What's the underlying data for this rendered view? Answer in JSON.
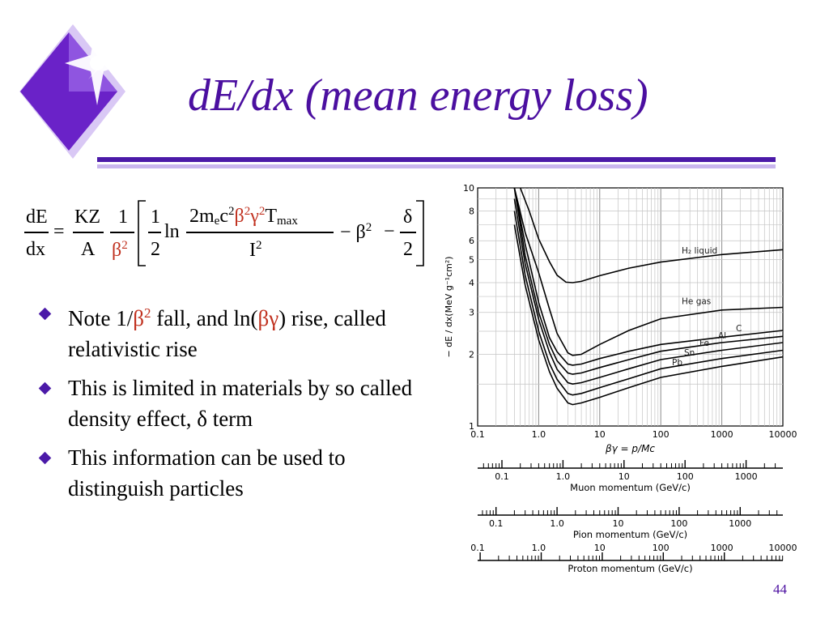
{
  "slide": {
    "title": "dE/dx (mean energy loss)",
    "page_number": "44",
    "accent_color": "#4b1aa8",
    "title_color": "#4b0fa0",
    "highlight_color": "#c0301e",
    "logo_icon": "purple-diamond-sparkle-icon"
  },
  "formula": {
    "lhs_num": "dE",
    "lhs_den": "dx",
    "eq": "=",
    "kz_num": "KZ",
    "kz_den": "A",
    "one_num": "1",
    "beta_den": "β",
    "beta_den_exp": "2",
    "half_num": "1",
    "half_den": "2",
    "ln": "ln",
    "arg_a": "2m",
    "arg_e": "e",
    "arg_c": "c",
    "arg_c_exp": "2",
    "arg_beta": "β",
    "arg_beta_exp": "2",
    "arg_gamma": "γ",
    "arg_gamma_exp": "2",
    "arg_t": "T",
    "arg_max": "max",
    "arg_den": "I",
    "arg_den_exp": "2",
    "minus_beta": "− β",
    "minus_beta_exp": "2",
    "minus": "−",
    "delta_num": "δ",
    "delta_den": "2"
  },
  "bullets": [
    {
      "parts": [
        "Note 1/",
        "β",
        "2",
        " fall, and ln(",
        "βγ",
        ") rise, called relativistic rise"
      ]
    },
    {
      "parts": [
        "This is limited in materials by so called density effect, ",
        "δ",
        " term"
      ]
    },
    {
      "parts": [
        "This information can be used to distinguish particles"
      ]
    }
  ],
  "chart_data": {
    "type": "line",
    "x_scale": "log",
    "y_scale": "log",
    "xlim": [
      0.1,
      10000
    ],
    "ylim": [
      1,
      10
    ],
    "xlabel": "βγ = p/Mc",
    "ylabel": "− dE / dx(MeV g⁻¹cm²)",
    "x_ticks": [
      "0.1",
      "1.0",
      "10",
      "100",
      "1000",
      "10000"
    ],
    "y_ticks": [
      "1",
      "2",
      "3",
      "4",
      "5",
      "6",
      "8",
      "10"
    ],
    "grid": true,
    "series": [
      {
        "name": "H₂ liquid",
        "x": [
          0.5,
          0.7,
          1,
          1.5,
          2,
          2.8,
          3.6,
          5,
          10,
          30,
          100,
          1000,
          10000
        ],
        "y": [
          10,
          8.0,
          6.1,
          4.9,
          4.3,
          4.02,
          4.0,
          4.05,
          4.28,
          4.6,
          4.88,
          5.25,
          5.5
        ]
      },
      {
        "name": "He gas",
        "x": [
          0.4,
          0.6,
          1,
          1.5,
          2,
          3,
          3.6,
          5,
          10,
          30,
          100,
          1000,
          10000
        ],
        "y": [
          10,
          6.5,
          4.4,
          3.1,
          2.45,
          2.03,
          1.98,
          2.0,
          2.2,
          2.52,
          2.82,
          3.07,
          3.15
        ]
      },
      {
        "name": "C",
        "x": [
          0.4,
          0.6,
          1,
          1.5,
          2,
          3,
          3.6,
          5,
          10,
          30,
          100,
          1000,
          10000
        ],
        "y": [
          10,
          5.8,
          3.3,
          2.35,
          2.05,
          1.82,
          1.8,
          1.82,
          1.92,
          2.06,
          2.2,
          2.36,
          2.52
        ]
      },
      {
        "name": "Al",
        "x": [
          0.4,
          0.6,
          1,
          1.5,
          2,
          3,
          3.6,
          5,
          10,
          30,
          100,
          1000,
          10000
        ],
        "y": [
          10,
          5.2,
          3.0,
          2.2,
          1.88,
          1.67,
          1.65,
          1.67,
          1.76,
          1.9,
          2.06,
          2.24,
          2.38
        ]
      },
      {
        "name": "Fe",
        "x": [
          0.4,
          0.6,
          1,
          1.5,
          2,
          3,
          3.6,
          5,
          10,
          30,
          100,
          1000,
          10000
        ],
        "y": [
          9,
          4.8,
          2.8,
          2.04,
          1.73,
          1.52,
          1.5,
          1.52,
          1.6,
          1.74,
          1.9,
          2.08,
          2.24
        ]
      },
      {
        "name": "Sn",
        "x": [
          0.4,
          0.6,
          1,
          1.5,
          2,
          3,
          3.6,
          5,
          10,
          30,
          100,
          1000,
          10000
        ],
        "y": [
          8,
          4.3,
          2.5,
          1.83,
          1.57,
          1.37,
          1.35,
          1.37,
          1.45,
          1.58,
          1.74,
          1.92,
          2.08
        ]
      },
      {
        "name": "Pb",
        "x": [
          0.4,
          0.6,
          1,
          1.5,
          2,
          3,
          3.6,
          5,
          10,
          30,
          100,
          1000,
          10000
        ],
        "y": [
          7,
          3.9,
          2.3,
          1.69,
          1.44,
          1.25,
          1.23,
          1.25,
          1.32,
          1.45,
          1.6,
          1.78,
          1.95
        ]
      }
    ],
    "momentum_axes": [
      {
        "label": "Muon momentum (GeV/c)",
        "ticks": [
          "0.1",
          "1.0",
          "10",
          "100",
          "1000"
        ],
        "top_ticks": []
      },
      {
        "label": "Pion momentum (GeV/c)",
        "ticks": [
          "0.1",
          "1.0",
          "10",
          "100",
          "1000"
        ],
        "top_ticks": []
      },
      {
        "label": "Proton momentum (GeV/c)",
        "ticks": [],
        "top_ticks": [
          "0.1",
          "1.0",
          "10",
          "100",
          "1000",
          "10000"
        ]
      }
    ]
  }
}
